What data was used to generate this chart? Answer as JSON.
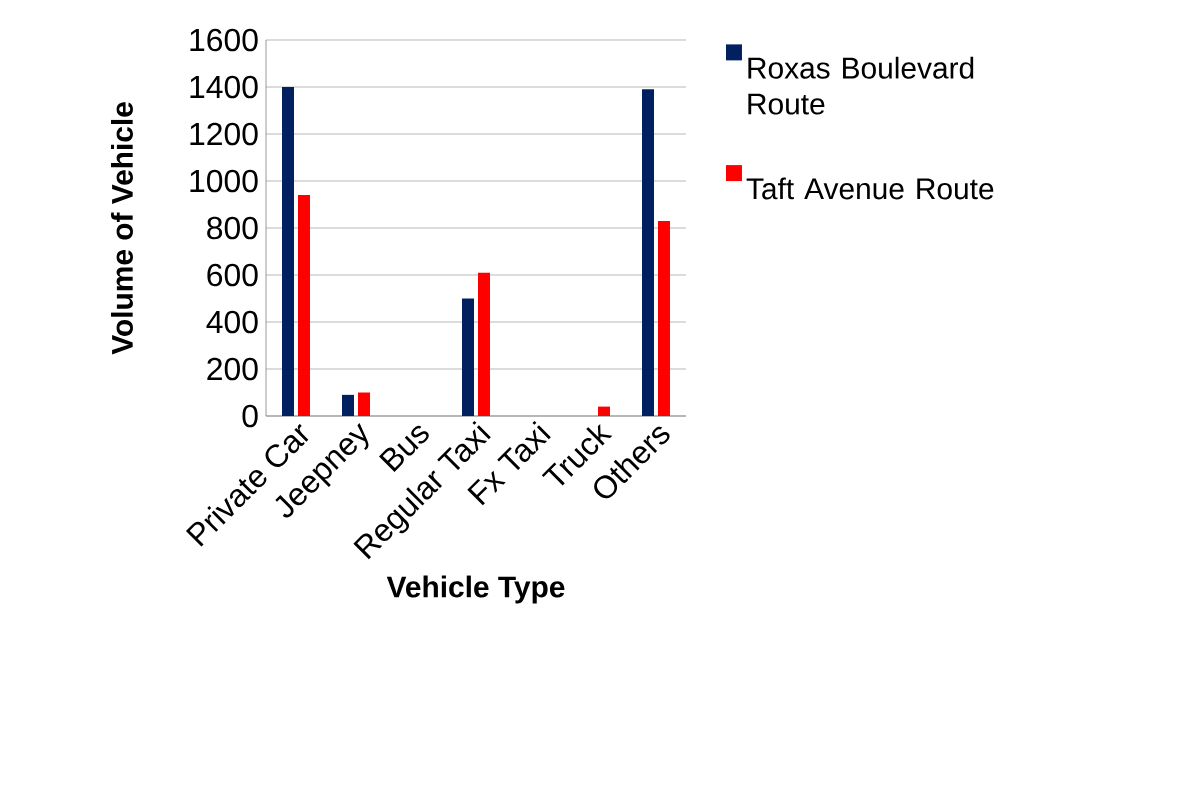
{
  "chart_data": {
    "type": "bar",
    "xlabel": "Vehicle Type",
    "ylabel": "Volume of Vehicle",
    "categories": [
      "Private Car",
      "Jeepney",
      "Bus",
      "Regular Taxi",
      "Fx Taxi",
      "Truck",
      "Others"
    ],
    "series": [
      {
        "name": "Roxas Boulevard Route",
        "color": "#002060",
        "values": [
          1400,
          90,
          0,
          500,
          0,
          0,
          1390
        ]
      },
      {
        "name": "Taft Avenue Route",
        "color": "#ff0000",
        "values": [
          940,
          100,
          0,
          610,
          0,
          40,
          830
        ]
      }
    ],
    "ylim": [
      0,
      1600
    ],
    "yticks": [
      0,
      200,
      400,
      600,
      800,
      1000,
      1200,
      1400,
      1600
    ],
    "grid": "y",
    "legend": "right"
  }
}
